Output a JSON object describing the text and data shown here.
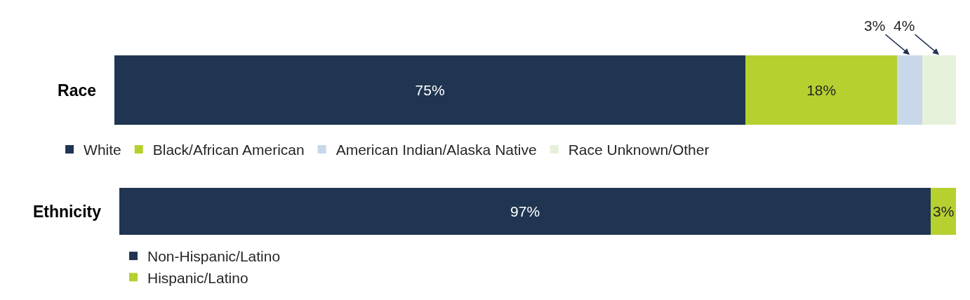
{
  "chart_data": [
    {
      "type": "bar",
      "orientation": "horizontal",
      "stacked": true,
      "categories": [
        "Race"
      ],
      "series": [
        {
          "name": "White",
          "color": "#203551",
          "values": [
            75
          ],
          "value_labels": [
            "75%"
          ]
        },
        {
          "name": "Black/African American",
          "color": "#b6d02f",
          "values": [
            18
          ],
          "value_labels": [
            "18%"
          ]
        },
        {
          "name": "American Indian/Alaska Native",
          "color": "#c8d8ea",
          "values": [
            3
          ],
          "value_labels": [
            null
          ]
        },
        {
          "name": "Race Unknown/Other",
          "color": "#e6f1da",
          "values": [
            4
          ],
          "value_labels": [
            null
          ]
        }
      ],
      "annotations": [
        "3%",
        "4%"
      ],
      "xlim": [
        0,
        100
      ],
      "legend": "bottom",
      "tick_labels": "y"
    },
    {
      "type": "bar",
      "orientation": "horizontal",
      "stacked": true,
      "categories": [
        "Ethnicity"
      ],
      "series": [
        {
          "name": "Non-Hispanic/Latino",
          "color": "#203551",
          "values": [
            97
          ],
          "value_labels": [
            "97%"
          ]
        },
        {
          "name": "Hispanic/Latino",
          "color": "#b6d02f",
          "values": [
            3
          ],
          "value_labels": [
            "3%"
          ]
        }
      ],
      "xlim": [
        0,
        100
      ],
      "legend": "bottom",
      "tick_labels": "y"
    }
  ]
}
